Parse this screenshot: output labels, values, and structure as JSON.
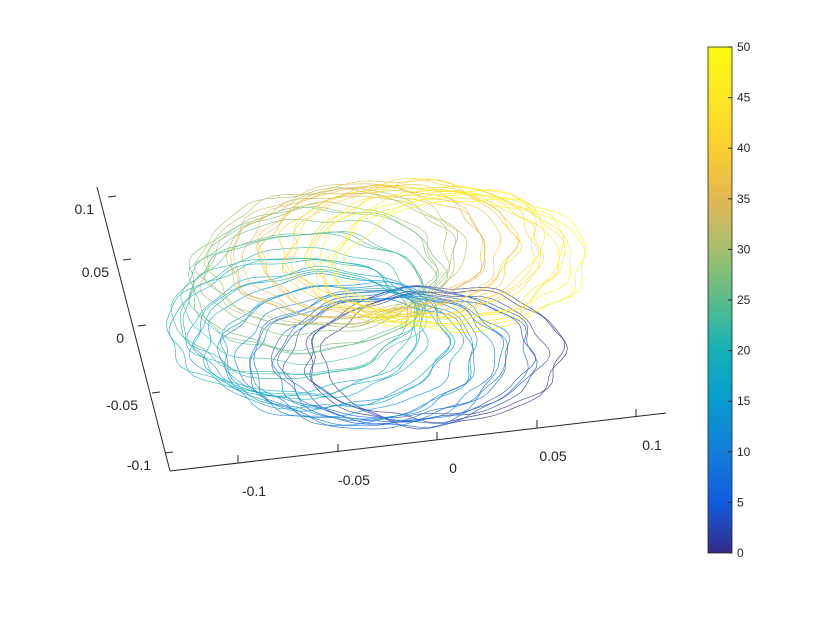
{
  "chart_data": {
    "type": "line",
    "title": "",
    "xlabel": "",
    "ylabel": "",
    "zlabel": "",
    "view": "3d",
    "grid": false,
    "x_ticks": [
      "-0.1",
      "-0.05",
      "0",
      "0.05",
      "0.1"
    ],
    "x_tick_values": [
      -0.1,
      -0.05,
      0,
      0.05,
      0.1
    ],
    "z_ticks": [
      "-0.1",
      "-0.05",
      "0",
      "0.05",
      "0.1"
    ],
    "z_tick_values": [
      -0.1,
      -0.05,
      0,
      0.05,
      0.1
    ],
    "xlim": [
      -0.12,
      0.12
    ],
    "zlim": [
      -0.1,
      0.1
    ],
    "colorbar": {
      "limits": [
        0,
        50
      ],
      "ticks": [
        "0",
        "5",
        "10",
        "15",
        "20",
        "25",
        "30",
        "35",
        "40",
        "45",
        "50"
      ],
      "tick_values": [
        0,
        5,
        10,
        15,
        20,
        25,
        30,
        35,
        40,
        45,
        50
      ],
      "colormap": "parula",
      "placement": "right"
    },
    "series": {
      "loop_count": 51,
      "color_values_from": 0,
      "color_values_to": 50,
      "loop_centers": [
        {
          "t": 0,
          "x": 0.03,
          "z": -0.03
        },
        {
          "t": 10,
          "x": -0.01,
          "z": -0.03
        },
        {
          "t": 20,
          "x": -0.045,
          "z": 0.0
        },
        {
          "t": 30,
          "x": -0.025,
          "z": 0.05
        },
        {
          "t": 40,
          "x": 0.015,
          "z": 0.055
        },
        {
          "t": 50,
          "x": 0.045,
          "z": 0.04
        }
      ],
      "loop_radius_x": 0.06,
      "loop_radius_z": 0.05
    }
  }
}
